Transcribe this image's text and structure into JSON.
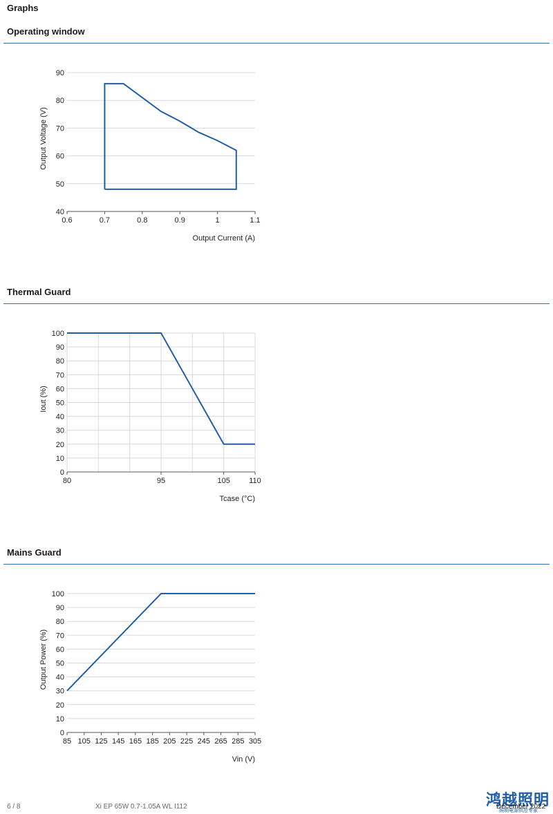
{
  "page": {
    "title": "Graphs"
  },
  "sections": [
    {
      "title": "Operating window"
    },
    {
      "title": "Thermal Guard"
    },
    {
      "title": "Mains Guard"
    }
  ],
  "chart_data": [
    {
      "type": "line",
      "title": "Operating window",
      "xlabel": "Output Current (A)",
      "ylabel": "Output Voltage (V)",
      "xlim": [
        0.6,
        1.1
      ],
      "ylim": [
        40,
        90
      ],
      "xticks": [
        "0.6",
        "0.7",
        "0.8",
        "0.9",
        "1",
        "1.1"
      ],
      "yticks": [
        "40",
        "50",
        "60",
        "70",
        "80",
        "90"
      ],
      "grid": "horizontal",
      "series": [
        {
          "x": [
            0.7,
            0.7,
            0.75,
            0.8,
            0.85,
            0.9,
            0.95,
            1.0,
            1.05,
            1.05,
            0.7
          ],
          "y": [
            48,
            86,
            86,
            81,
            76,
            72.5,
            68.5,
            65.5,
            62,
            48,
            48
          ]
        }
      ]
    },
    {
      "type": "line",
      "title": "Thermal Guard",
      "xlabel": "Tcase (°C)",
      "ylabel": "Iout (%)",
      "xlim": [
        80,
        110
      ],
      "ylim": [
        0,
        100
      ],
      "xticks": [
        "80",
        "95",
        "105",
        "110"
      ],
      "yticks": [
        "0",
        "10",
        "20",
        "30",
        "40",
        "50",
        "60",
        "70",
        "80",
        "90",
        "100"
      ],
      "grid": "both",
      "series": [
        {
          "x": [
            80,
            95,
            105,
            110
          ],
          "y": [
            100,
            100,
            20,
            20
          ]
        }
      ]
    },
    {
      "type": "line",
      "title": "Mains Guard",
      "xlabel": "Vin (V)",
      "ylabel": "Output Power (%)",
      "xlim": [
        85,
        305
      ],
      "ylim": [
        0,
        100
      ],
      "xticks": [
        "85",
        "105",
        "125",
        "145",
        "165",
        "185",
        "205",
        "225",
        "245",
        "265",
        "285",
        "305"
      ],
      "yticks": [
        "0",
        "10",
        "20",
        "30",
        "40",
        "50",
        "60",
        "70",
        "80",
        "90",
        "100"
      ],
      "grid": "horizontal",
      "series": [
        {
          "x": [
            85,
            195,
            305
          ],
          "y": [
            30,
            100,
            100
          ]
        }
      ]
    }
  ],
  "footer": {
    "page_number": "6 / 8",
    "product": "Xi EP 65W 0.7-1.05A WL I112",
    "date": "December 2022",
    "logo_text": "鸿越照明",
    "logo_sub": "照明电源供应专家"
  },
  "colors": {
    "accent": "#1f5fa8",
    "rule": "#2f6fb5",
    "grid": "#d9d9d9"
  }
}
